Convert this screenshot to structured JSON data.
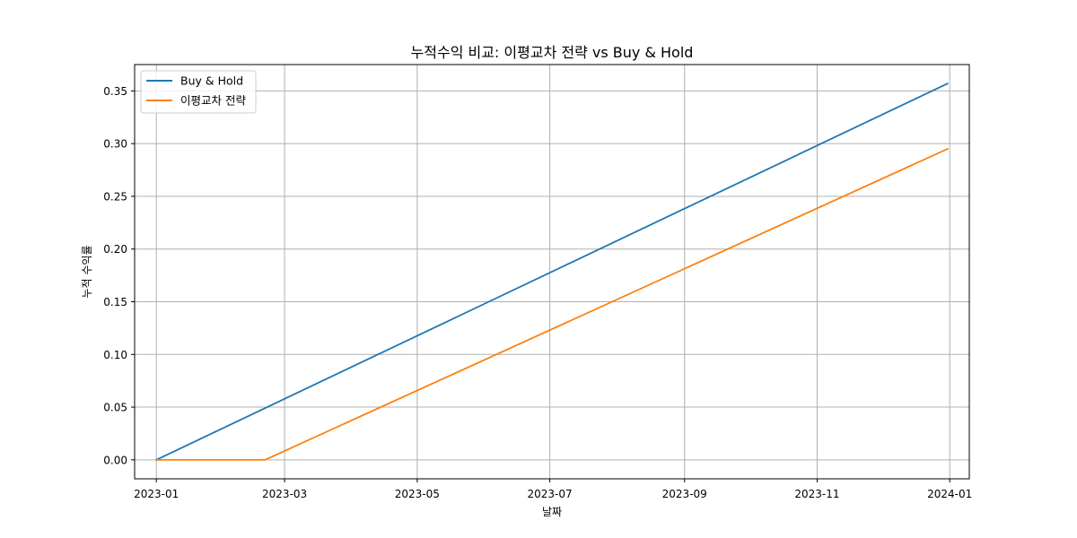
{
  "chart_data": {
    "type": "line",
    "title": "누적수익 비교: 이평교차 전략 vs Buy & Hold",
    "xlabel": "날짜",
    "ylabel": "누적 수익률",
    "x_ticks": [
      "2023-01",
      "2023-03",
      "2023-05",
      "2023-07",
      "2023-09",
      "2023-11",
      "2024-01"
    ],
    "y_ticks": [
      "0.00",
      "0.05",
      "0.10",
      "0.15",
      "0.20",
      "0.25",
      "0.30",
      "0.35"
    ],
    "xlim": [
      "2022-12-22",
      "2024-01-10"
    ],
    "ylim": [
      -0.018,
      0.375
    ],
    "grid": true,
    "legend_position": "top-left",
    "series": [
      {
        "name": "Buy & Hold",
        "color": "#1f77b4",
        "x": [
          "2023-01-01",
          "2023-12-31"
        ],
        "y": [
          0.0,
          0.357
        ]
      },
      {
        "name": "이평교차 전략",
        "color": "#ff7f0e",
        "x": [
          "2023-01-01",
          "2023-02-20",
          "2023-12-31"
        ],
        "y": [
          0.0,
          0.0,
          0.295
        ]
      }
    ]
  }
}
